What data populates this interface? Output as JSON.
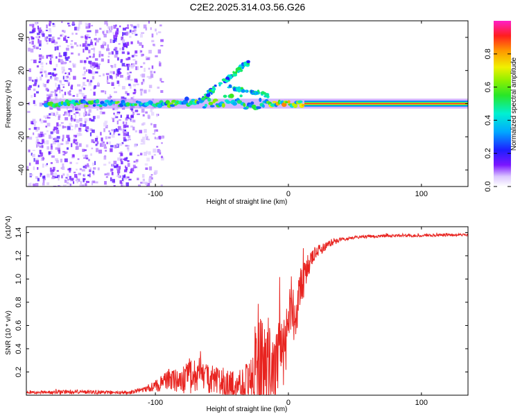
{
  "title": "C2E2.2025.314.03.56.G26",
  "colors": {
    "snr_line": "#e8231f",
    "axis": "#000000",
    "background": "#ffffff"
  },
  "chart_data": [
    {
      "type": "heatmap",
      "title": "C2E2.2025.314.03.56.G26",
      "xlabel": "Height of straight line (km)",
      "ylabel": "Frequency (Hz)",
      "xlim": [
        -197,
        135
      ],
      "ylim": [
        -50,
        50
      ],
      "xticks": [
        -100,
        0,
        100
      ],
      "yticks": [
        -40,
        -20,
        0,
        20,
        40
      ],
      "colorbar": {
        "label": "Normalized spectral amplitude",
        "range": [
          0,
          1
        ],
        "ticks": [
          0.0,
          0.2,
          0.4,
          0.6,
          0.8
        ],
        "colormap": "rainbow (white-violet-blue-cyan-green-yellow-red-magenta)"
      },
      "features": {
        "carrier_frequency_hz": 0,
        "strong_signal_start_km": 12,
        "branch_a_km_range": [
          -65,
          -30
        ],
        "branch_a_freq_hz_range": [
          3,
          25
        ],
        "branch_b_km_range": [
          -45,
          -15
        ],
        "branch_b_freq_hz_range": [
          5,
          10
        ],
        "noise_region_km": [
          -197,
          -95
        ]
      }
    },
    {
      "type": "line",
      "xlabel": "Height of straight line (km)",
      "ylabel": "SNR (10 * v/v)",
      "y_scale_label": "(x10^4)",
      "y_multiplier": 10000,
      "xlim": [
        -197,
        135
      ],
      "ylim": [
        0,
        1.45
      ],
      "xticks": [
        -100,
        0,
        100
      ],
      "yticks": [
        0.2,
        0.4,
        0.6,
        0.8,
        1.0,
        1.2,
        1.4
      ],
      "series": [
        {
          "name": "SNR",
          "envelope": {
            "x": [
              -197,
              -160,
              -120,
              -105,
              -95,
              -90,
              -80,
              -70,
              -60,
              -50,
              -40,
              -30,
              -25,
              -20,
              -15,
              -10,
              -5,
              0,
              5,
              10,
              15,
              20,
              30,
              40,
              50,
              70,
              100,
              135
            ],
            "base": [
              0.02,
              0.03,
              0.02,
              0.06,
              0.1,
              0.14,
              0.12,
              0.17,
              0.15,
              0.1,
              0.08,
              0.12,
              0.25,
              0.22,
              0.2,
              0.2,
              0.35,
              0.6,
              0.75,
              0.92,
              1.1,
              1.22,
              1.3,
              1.34,
              1.36,
              1.37,
              1.375,
              1.38
            ],
            "amplitude": [
              0.02,
              0.03,
              0.02,
              0.05,
              0.12,
              0.15,
              0.2,
              0.28,
              0.22,
              0.2,
              0.22,
              0.3,
              0.6,
              0.75,
              0.8,
              0.7,
              0.6,
              0.5,
              0.45,
              0.3,
              0.2,
              0.1,
              0.05,
              0.03,
              0.02,
              0.02,
              0.02,
              0.02
            ]
          }
        }
      ]
    }
  ]
}
